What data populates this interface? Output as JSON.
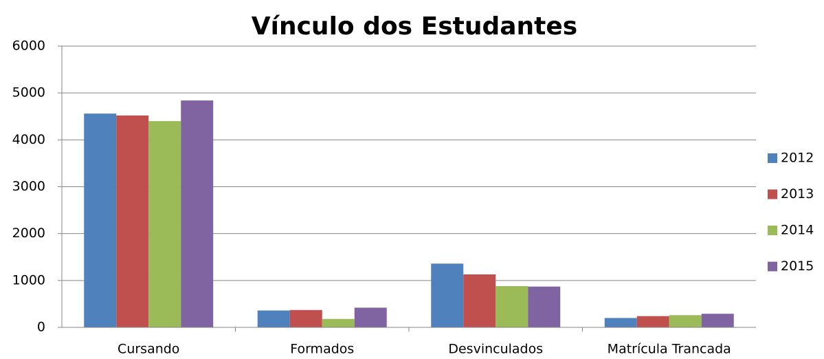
{
  "chart_data": {
    "type": "bar",
    "title": "Vínculo dos Estudantes",
    "categories": [
      "Cursando",
      "Formados",
      "Desvinculados",
      "Matrícula Trancada"
    ],
    "series": [
      {
        "name": "2012",
        "color": "#4f81bd",
        "values": [
          4560,
          360,
          1360,
          200
        ]
      },
      {
        "name": "2013",
        "color": "#c0504d",
        "values": [
          4520,
          370,
          1130,
          240
        ]
      },
      {
        "name": "2014",
        "color": "#9bbb59",
        "values": [
          4400,
          180,
          880,
          260
        ]
      },
      {
        "name": "2015",
        "color": "#8064a2",
        "values": [
          4840,
          420,
          870,
          290
        ]
      }
    ],
    "ylim": [
      0,
      6000
    ],
    "yticks": [
      0,
      1000,
      2000,
      3000,
      4000,
      5000,
      6000
    ],
    "grid": true,
    "legend": "right"
  }
}
